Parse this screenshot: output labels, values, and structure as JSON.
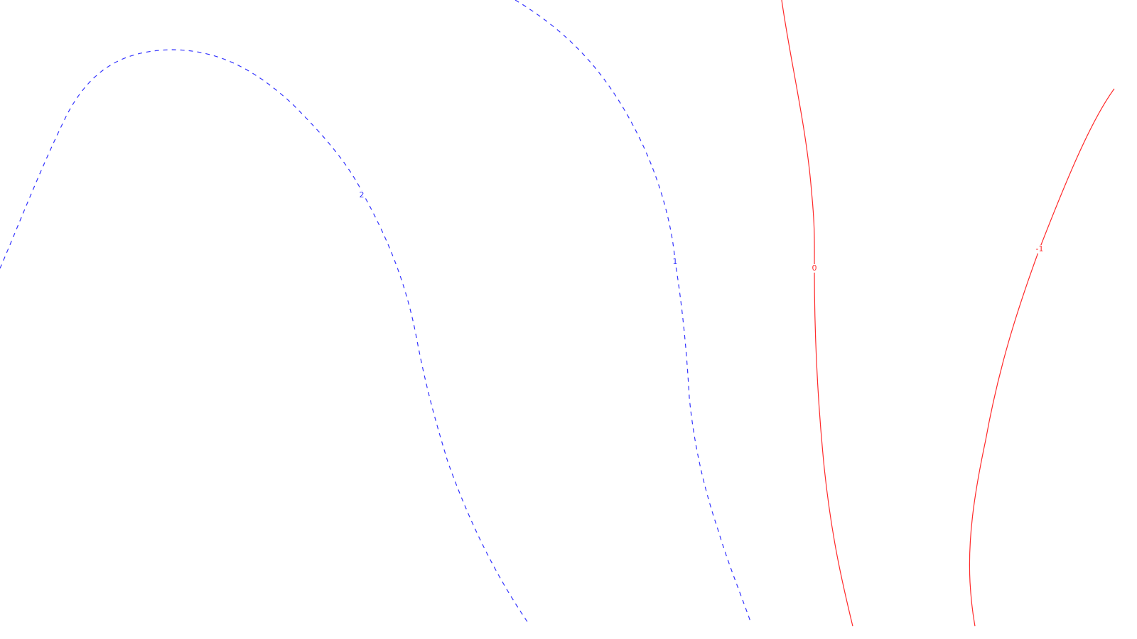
{
  "chart_data": {
    "type": "contour",
    "title": "",
    "xlabel": "",
    "ylabel": "",
    "grid": false,
    "legend": "none",
    "colors": {
      "positive": "#3333ff",
      "nonpositive": "#ff2a2a",
      "background": "#ffffff"
    },
    "levels": [
      {
        "value": 2,
        "label": "2",
        "line_style": "dashed",
        "color": "#3333ff"
      },
      {
        "value": 1,
        "label": "1",
        "line_style": "dashed",
        "color": "#3333ff"
      },
      {
        "value": 0,
        "label": "0",
        "line_style": "solid",
        "color": "#ff2a2a"
      },
      {
        "value": -1,
        "label": "-1",
        "line_style": "solid",
        "color": "#ff2a2a"
      }
    ]
  }
}
